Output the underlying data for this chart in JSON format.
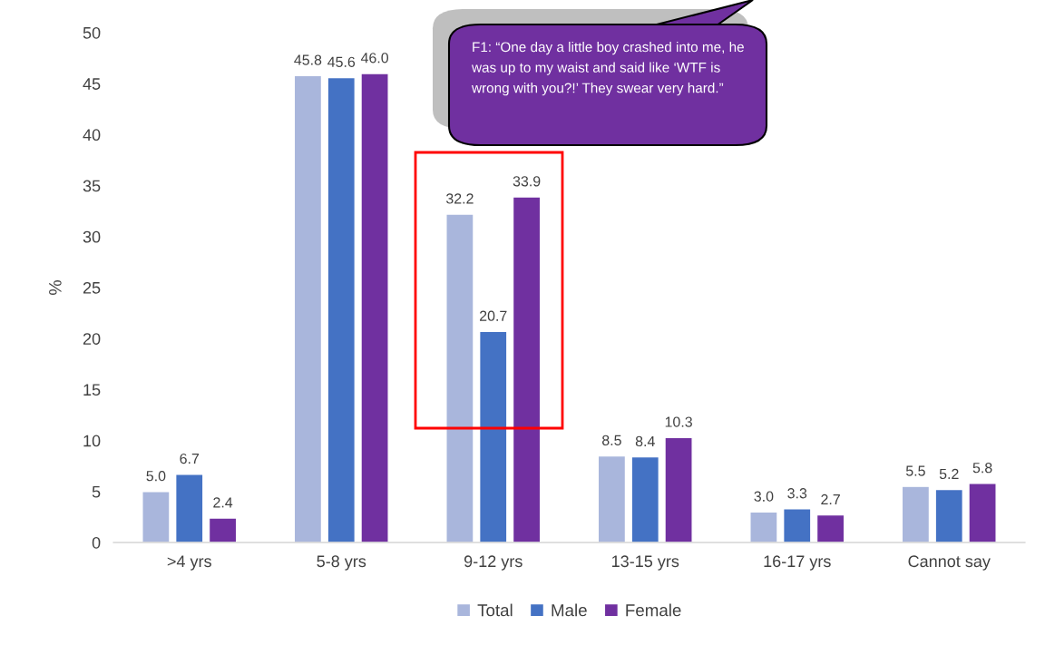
{
  "chart_data": {
    "type": "bar",
    "categories": [
      ">4 yrs",
      "5-8 yrs",
      "9-12 yrs",
      "13-15 yrs",
      "16-17 yrs",
      "Cannot say"
    ],
    "series": [
      {
        "name": "Total",
        "color": "#a9b6dc",
        "values": [
          5.0,
          45.8,
          32.2,
          8.5,
          3.0,
          5.5
        ],
        "value_labels": [
          "5.0",
          "45.8",
          "32.2",
          "8.5",
          "3.0",
          "5.5"
        ]
      },
      {
        "name": "Male",
        "color": "#4472c4",
        "values": [
          6.7,
          45.6,
          20.7,
          8.4,
          3.3,
          5.2
        ],
        "value_labels": [
          "6.7",
          "45.6",
          "20.7",
          "8.4",
          "3.3",
          "5.2"
        ]
      },
      {
        "name": "Female",
        "color": "#7030a0",
        "values": [
          2.4,
          46.0,
          33.9,
          10.3,
          2.7,
          5.8
        ],
        "value_labels": [
          "2.4",
          "46.0",
          "33.9",
          "10.3",
          "2.7",
          "5.8"
        ]
      }
    ],
    "ylabel": "%",
    "ylim": [
      0,
      50
    ],
    "yticks": [
      0,
      5,
      10,
      15,
      20,
      25,
      30,
      35,
      40,
      45,
      50
    ],
    "grid": false,
    "legend": "bottom",
    "annotations": [
      "F1: “One day a little boy crashed into me, he was up to my waist and said like ‘WTF is wrong with you?!’ They swear very hard.”"
    ]
  }
}
